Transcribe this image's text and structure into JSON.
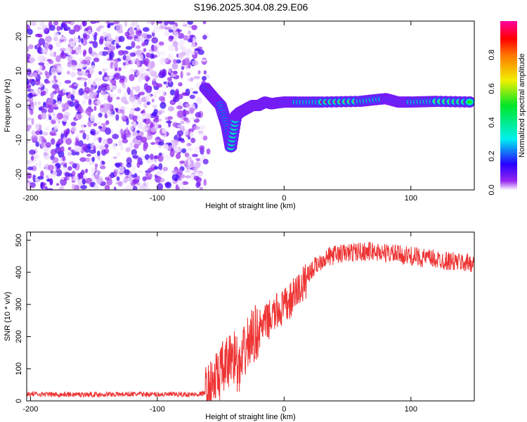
{
  "title": "S196.2025.304.08.29.E06",
  "chart_data": [
    {
      "type": "heatmap",
      "title": "S196.2025.304.08.29.E06",
      "xlabel": "Height of straight line (km)",
      "ylabel": "Frequency (Hz)",
      "xlim": [
        -203,
        150
      ],
      "ylim": [
        -24.5,
        24.5
      ],
      "xticks": [
        -200,
        -100,
        0,
        100
      ],
      "yticks": [
        -20,
        -10,
        0,
        10,
        20
      ],
      "colorbar": {
        "label": "Normalized spectral amplitude",
        "range": [
          0,
          1
        ],
        "ticks": [
          "0.0",
          "0.2",
          "0.4",
          "0.6",
          "0.8"
        ]
      },
      "noise_region_x": [
        -203,
        -65
      ],
      "ridge": {
        "x": [
          -62,
          -55,
          -50,
          -45,
          -42,
          -38,
          -35,
          -30,
          -25,
          -20,
          -15,
          -10,
          -5,
          0,
          10,
          30,
          60,
          80,
          90,
          100,
          120,
          150
        ],
        "freq": [
          5,
          2,
          0,
          -6,
          -12,
          -3,
          -2,
          -1,
          0,
          0,
          1,
          0.5,
          0.8,
          1,
          1,
          1,
          1.2,
          2,
          1,
          1,
          1.2,
          1
        ],
        "amplitude": [
          0.3,
          0.35,
          0.3,
          0.4,
          0.35,
          0.3,
          0.4,
          0.45,
          0.6,
          0.7,
          0.65,
          0.7,
          0.6,
          0.7,
          0.9,
          0.9,
          0.75,
          0.9,
          0.85,
          0.8,
          0.6,
          0.5
        ]
      }
    },
    {
      "type": "line",
      "xlabel": "Height of straight line (km)",
      "ylabel": "SNR (10 * v/v)",
      "xlim": [
        -203,
        150
      ],
      "ylim": [
        0,
        525
      ],
      "xticks": [
        -200,
        -100,
        0,
        100
      ],
      "yticks": [
        0,
        100,
        200,
        300,
        400,
        500
      ],
      "color": "#ee3333",
      "x": [
        -203,
        -180,
        -150,
        -120,
        -90,
        -70,
        -60,
        -55,
        -50,
        -45,
        -40,
        -35,
        -30,
        -25,
        -20,
        -15,
        -10,
        -5,
        0,
        5,
        10,
        15,
        20,
        25,
        30,
        40,
        50,
        60,
        70,
        80,
        90,
        100,
        110,
        120,
        130,
        140,
        150
      ],
      "y": [
        22,
        20,
        20,
        21,
        20,
        20,
        25,
        60,
        90,
        110,
        150,
        90,
        170,
        200,
        220,
        240,
        260,
        280,
        290,
        310,
        340,
        360,
        400,
        420,
        440,
        455,
        460,
        465,
        465,
        460,
        455,
        450,
        445,
        440,
        435,
        430,
        430
      ]
    }
  ]
}
